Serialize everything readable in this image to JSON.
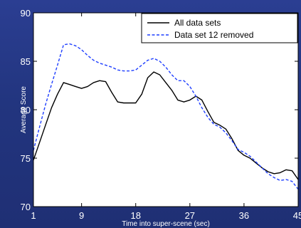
{
  "chart_data": {
    "type": "line",
    "title": "",
    "xlabel": "Time into super-scene (sec)",
    "ylabel": "Average Score",
    "xlim": [
      1,
      45
    ],
    "ylim": [
      70,
      90
    ],
    "xticks": [
      1,
      9,
      18,
      27,
      36,
      45
    ],
    "yticks": [
      70,
      75,
      80,
      85,
      90
    ],
    "grid": false,
    "legend_position": "top-right",
    "series": [
      {
        "name": "All data sets",
        "color": "#000000",
        "dash": "solid",
        "x": [
          1,
          2,
          3,
          4,
          5,
          6,
          7,
          8,
          9,
          10,
          11,
          12,
          13,
          14,
          15,
          16,
          17,
          18,
          19,
          20,
          21,
          22,
          23,
          24,
          25,
          26,
          27,
          28,
          29,
          30,
          31,
          32,
          33,
          34,
          35,
          36,
          37,
          38,
          39,
          40,
          41,
          42,
          43,
          44,
          45
        ],
        "values": [
          74.8,
          76.6,
          78.4,
          80.2,
          81.6,
          82.8,
          82.6,
          82.4,
          82.2,
          82.4,
          82.8,
          83.0,
          82.9,
          81.8,
          80.8,
          80.7,
          80.7,
          80.7,
          81.6,
          83.3,
          83.9,
          83.6,
          82.8,
          82.0,
          81.0,
          80.8,
          81.0,
          81.4,
          81.0,
          79.8,
          78.7,
          78.4,
          78.0,
          77.0,
          75.8,
          75.3,
          75.0,
          74.5,
          74.0,
          73.6,
          73.4,
          73.5,
          73.8,
          73.7,
          72.8
        ]
      },
      {
        "name": "Data set 12 removed",
        "color": "#1f3fff",
        "dash": "dashed",
        "x": [
          1,
          2,
          3,
          4,
          5,
          6,
          7,
          8,
          9,
          10,
          11,
          12,
          13,
          14,
          15,
          16,
          17,
          18,
          19,
          20,
          21,
          22,
          23,
          24,
          25,
          26,
          27,
          28,
          29,
          30,
          31,
          32,
          33,
          34,
          35,
          36,
          37,
          38,
          39,
          40,
          41,
          42,
          43,
          44,
          45
        ],
        "values": [
          75.8,
          78.2,
          80.5,
          82.6,
          84.6,
          86.7,
          86.8,
          86.6,
          86.2,
          85.6,
          85.1,
          84.8,
          84.6,
          84.4,
          84.1,
          84.0,
          84.0,
          84.1,
          84.6,
          85.1,
          85.3,
          85.0,
          84.4,
          83.6,
          83.0,
          83.0,
          82.4,
          81.4,
          80.2,
          79.2,
          78.5,
          78.2,
          77.6,
          76.8,
          75.9,
          75.6,
          75.2,
          74.6,
          74.0,
          73.4,
          73.0,
          72.7,
          72.8,
          72.6,
          71.8
        ]
      }
    ]
  }
}
